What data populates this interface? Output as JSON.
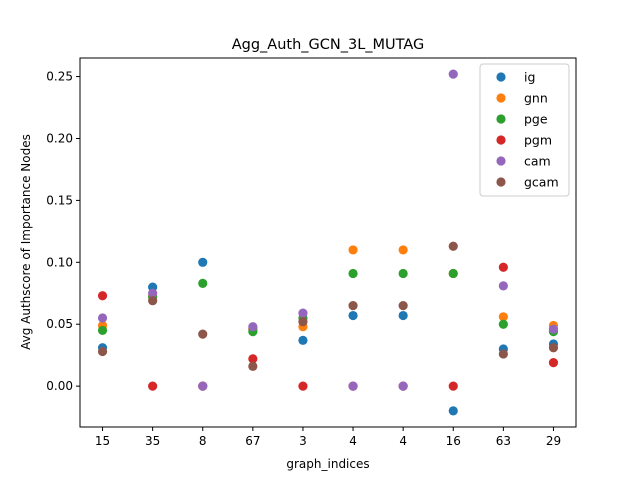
{
  "chart_data": {
    "type": "scatter",
    "title": "Agg_Auth_GCN_3L_MUTAG",
    "xlabel": "graph_indices",
    "ylabel": "Avg Authscore of Importance Nodes",
    "categories": [
      "15",
      "35",
      "8",
      "67",
      "3",
      "4",
      "4",
      "16",
      "63",
      "29"
    ],
    "ylim": [
      -0.033,
      0.265
    ],
    "yticks": [
      0.0,
      0.05,
      0.1,
      0.15,
      0.2,
      0.25
    ],
    "ytick_labels": [
      "0.00",
      "0.05",
      "0.10",
      "0.15",
      "0.20",
      "0.25"
    ],
    "grid": false,
    "legend_position": "top-right",
    "series": [
      {
        "name": "ig",
        "color": "#1f77b4",
        "values": [
          0.031,
          0.08,
          0.1,
          0.046,
          0.037,
          0.057,
          0.057,
          -0.02,
          0.03,
          0.034
        ]
      },
      {
        "name": "gnn",
        "color": "#ff7f0e",
        "values": [
          0.049,
          0.073,
          0.0,
          0.046,
          0.048,
          0.11,
          0.11,
          0.091,
          0.056,
          0.049
        ]
      },
      {
        "name": "pge",
        "color": "#2ca02c",
        "values": [
          0.045,
          0.072,
          0.083,
          0.044,
          0.055,
          0.091,
          0.091,
          0.091,
          0.05,
          0.044
        ]
      },
      {
        "name": "pgm",
        "color": "#d62728",
        "values": [
          0.073,
          0.0,
          0.0,
          0.022,
          0.0,
          0.0,
          0.0,
          0.0,
          0.096,
          0.019
        ]
      },
      {
        "name": "cam",
        "color": "#9467bd",
        "values": [
          0.055,
          0.075,
          0.0,
          0.048,
          0.059,
          0.0,
          0.0,
          0.252,
          0.081,
          0.046
        ]
      },
      {
        "name": "gcam",
        "color": "#8c564b",
        "values": [
          0.028,
          0.069,
          0.042,
          0.016,
          0.052,
          0.065,
          0.065,
          0.113,
          0.026,
          0.031
        ]
      }
    ]
  }
}
